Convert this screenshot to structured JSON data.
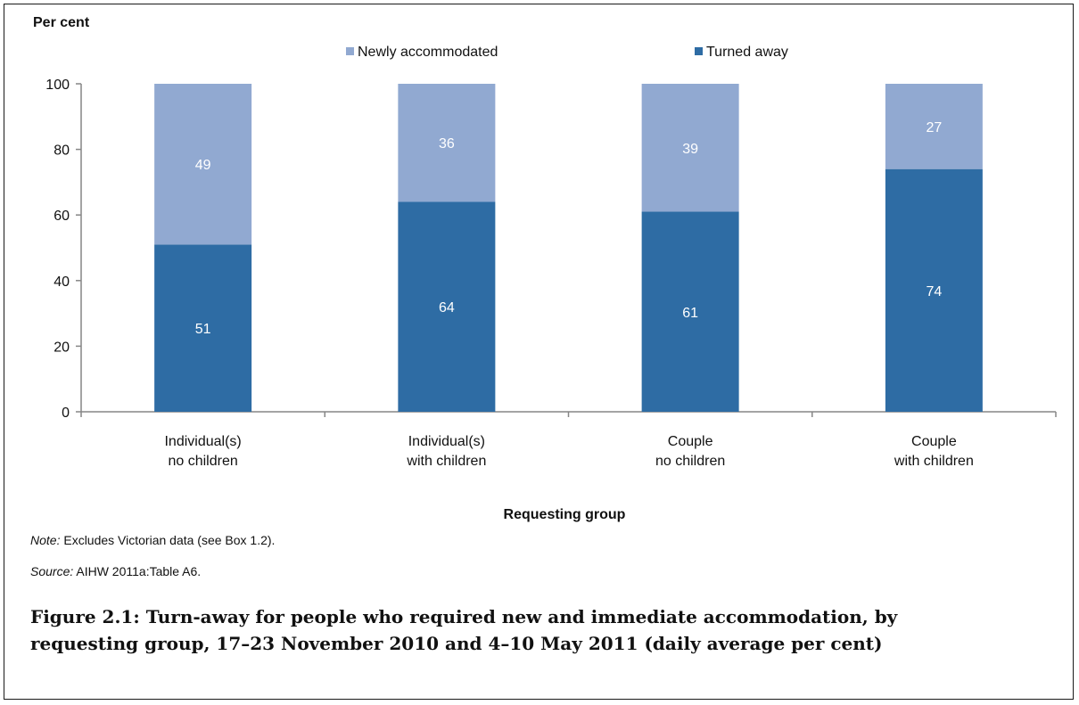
{
  "chart_data": {
    "type": "bar",
    "stacked": true,
    "categories": [
      [
        "Individual(s)",
        "no children"
      ],
      [
        "Individual(s)",
        "with children"
      ],
      [
        "Couple",
        "no children"
      ],
      [
        "Couple",
        "with children"
      ]
    ],
    "series": [
      {
        "name": "Turned away",
        "values": [
          51,
          64,
          61,
          74
        ],
        "color": "#2e6ca4"
      },
      {
        "name": "Newly accommodated",
        "values": [
          49,
          36,
          39,
          27
        ],
        "color": "#91a9d1"
      }
    ],
    "ylabel": "Per cent",
    "xlabel": "Requesting group",
    "ylim": [
      0,
      100
    ],
    "yticks": [
      0,
      20,
      40,
      60,
      80,
      100
    ],
    "grid": false,
    "legend_position": "top",
    "legend_order": [
      "Newly accommodated",
      "Turned away"
    ],
    "data_label_color": "#ffffff"
  },
  "notes": {
    "note_label": "Note:",
    "note_text": " Excludes Victorian data (see Box 1.2).",
    "source_label": "Source:",
    "source_text": " AIHW 2011a:Table A6."
  },
  "caption": "Figure 2.1: Turn-away for people who required new and immediate accommodation, by requesting group, 17–23 November 2010 and 4–10 May 2011 (daily average per cent)"
}
